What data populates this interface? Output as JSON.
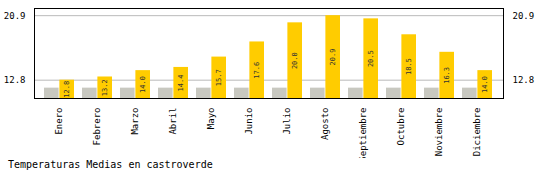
{
  "chart_data": {
    "type": "bar",
    "title": "Temperaturas Medias en castroverde",
    "categories": [
      "Enero",
      "Febrero",
      "Marzo",
      "Abril",
      "Mayo",
      "Junio",
      "Julio",
      "Agosto",
      "Septiembre",
      "Octubre",
      "Noviembre",
      "Diciembre"
    ],
    "series": [
      {
        "color": "#C8C8C0",
        "values": [
          11.8,
          11.8,
          11.8,
          11.8,
          11.8,
          11.8,
          11.8,
          11.8,
          11.8,
          11.8,
          11.8,
          11.8
        ]
      },
      {
        "color": "#FFCC00",
        "values": [
          12.8,
          13.2,
          14.0,
          14.4,
          15.7,
          17.6,
          20.0,
          20.9,
          20.5,
          18.5,
          16.3,
          14.0
        ],
        "data_labels": true,
        "value_labels": [
          "12.8",
          "13.2",
          "14.0",
          "14.4",
          "15.7",
          "17.6",
          "20.0",
          "20.9",
          "20.5",
          "18.5",
          "16.3",
          "14.0"
        ]
      }
    ],
    "ylim": [
      10.5,
      21.8
    ],
    "yticks": [
      12.8,
      20.9
    ],
    "grid": true
  }
}
